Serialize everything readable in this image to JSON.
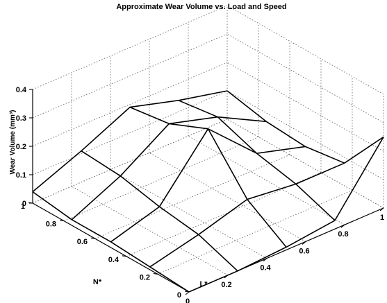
{
  "chart_data": {
    "type": "surface",
    "title": "Approximate Wear Volume vs. Load and Speed",
    "xlabel": "L*",
    "ylabel": "N*",
    "zlabel": "Wear Volume (mm³)",
    "x": [
      0,
      0.25,
      0.5,
      0.75,
      1
    ],
    "y": [
      0,
      0.25,
      0.5,
      0.75,
      1
    ],
    "z": [
      [
        0.0,
        0.0,
        0.01,
        0.03,
        0.25
      ],
      [
        0.01,
        0.05,
        0.1,
        0.08,
        0.08
      ],
      [
        0.02,
        0.07,
        0.27,
        0.11,
        0.06
      ],
      [
        0.02,
        0.1,
        0.21,
        0.16,
        0.07
      ],
      [
        0.04,
        0.11,
        0.19,
        0.14,
        0.1
      ]
    ],
    "xlim": [
      0,
      1
    ],
    "ylim": [
      0,
      1
    ],
    "zlim": [
      0,
      0.4
    ],
    "xticks": [
      "0",
      "0.2",
      "0.4",
      "0.6",
      "0.8",
      "1"
    ],
    "yticks": [
      "0",
      "0.2",
      "0.4",
      "0.6",
      "0.8",
      "1"
    ],
    "zticks": [
      "0",
      "0.1",
      "0.2",
      "0.3",
      "0.4"
    ],
    "grid": true,
    "style": "mesh"
  }
}
